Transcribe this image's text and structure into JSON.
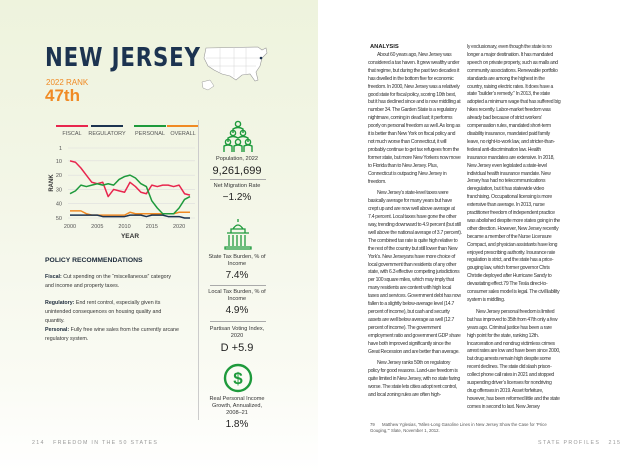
{
  "left_page": {
    "title": "NEW JERSEY",
    "rank_label": "2022 RANK",
    "rank": "47th",
    "stats": [
      {
        "label": "Population, 2022",
        "value": "9,261,699",
        "icon": "people-icon"
      },
      {
        "label": "Net Migration Rate",
        "value": "−1.2%"
      },
      {
        "label": "State Tax Burden, % of Income",
        "value": "7.4%",
        "icon": "capitol-icon"
      },
      {
        "label": "Local Tax Burden, % of Income",
        "value": "4.9%"
      },
      {
        "label": "Partisan Voting Index, 2020",
        "value": "D +5.9"
      },
      {
        "label": "Real Personal Income Growth, Annualized, 2008–21",
        "value": "1.8%",
        "icon": "dollar-icon"
      }
    ],
    "policy": {
      "heading": "POLICY RECOMMENDATIONS",
      "items": [
        {
          "label": "Fiscal:",
          "text": " Cut spending on the “miscellaneous” category and income and property taxes."
        },
        {
          "label": "Regulatory:",
          "text": " End rent control, especially given its unintended consequences on housing quality and quantity."
        },
        {
          "label": "Personal:",
          "text": " Fully free wine sales from the currently arcane regulatory system."
        }
      ]
    },
    "footer": {
      "page": "214",
      "title": "FREEDOM IN THE 50 STATES"
    }
  },
  "chart_data": {
    "type": "line",
    "xlabel": "YEAR",
    "ylabel": "RANK",
    "xlim": [
      2000,
      2022
    ],
    "ylim": [
      1,
      50
    ],
    "y_inverted": true,
    "xticks": [
      2000,
      2005,
      2010,
      2015,
      2020
    ],
    "yticks": [
      1,
      10,
      20,
      30,
      40,
      50
    ],
    "grid": true,
    "legend": "top",
    "x": [
      2000,
      2001,
      2002,
      2003,
      2004,
      2005,
      2006,
      2007,
      2008,
      2009,
      2010,
      2011,
      2012,
      2013,
      2014,
      2015,
      2016,
      2017,
      2018,
      2019,
      2020,
      2021,
      2022
    ],
    "series": [
      {
        "name": "FISCAL",
        "color": "#e8264e",
        "values": [
          10,
          11,
          15,
          20,
          25,
          26,
          25,
          35,
          30,
          31,
          32,
          25,
          28,
          32,
          33,
          27,
          28,
          27,
          27,
          28,
          27,
          33,
          34
        ]
      },
      {
        "name": "REGULATORY",
        "color": "#1c3350",
        "values": [
          48,
          48,
          48,
          48,
          48,
          48,
          49,
          49,
          49,
          49,
          49,
          48,
          48,
          48,
          49,
          48,
          48,
          48,
          49,
          49,
          49,
          50,
          50
        ]
      },
      {
        "name": "PERSONAL",
        "color": "#1e9a3c",
        "values": [
          33,
          31,
          27,
          28,
          27,
          26,
          27,
          26,
          27,
          23,
          21,
          20,
          22,
          26,
          28,
          38,
          43,
          47,
          47,
          47,
          43,
          37,
          35
        ]
      },
      {
        "name": "OVERALL",
        "color": "#f08a24",
        "values": [
          45,
          45,
          45,
          47,
          48,
          48,
          48,
          48,
          48,
          48,
          48,
          46,
          47,
          47,
          47,
          47,
          47,
          47,
          47,
          47,
          46,
          46,
          46
        ]
      }
    ]
  },
  "right_page": {
    "heading": "ANALYSIS",
    "col1": [
      "About 60 years ago, New Jersey was considered a tax haven. It grew wealthy under that regime, but during the past two decades it has dwelled in the bottom five for economic freedom. In 2000, New Jersey was a relatively good state for fiscal policy, scoring 10th best, but it has declined since and is now middling at number 34. The Garden State is a regulatory nightmare, coming in dead last; it performs poorly on personal freedom as well. As long as it is better than New York on fiscal policy and not much worse than Connecticut, it will probably continue to get tax refugees from the former state, but more New Yorkers now move to Florida than to New Jersey. Plus, Connecticut is outpacing New Jersey in freedom.",
      "New Jersey’s state-level taxes were basically average for many years but have crept up and are now well above average at 7.4 percent. Local taxes have gone the other way, trending downward to 4.9 percent (but still well above the national average of 3.7 percent). The combined tax rate is quite high relative to the rest of the country but still lower than New York’s. New Jerseyans have more choice of local government than residents of any other state, with 6.3 effective competing jurisdictions per 100 square miles, which may imply that many residents are content with high local taxes and services. Government debt has now fallen to a slightly below-average level (14.7 percent of income), but cash and security assets are well below average as well (12.7 percent of income). The government employment ratio and government GDP share have both improved significantly since the Great Recession and are better than average.",
      "New Jersey ranks 50th on regulatory policy for good reasons. Land-use freedom is quite limited in New Jersey, with no state faring worse. The state lets cities adopt rent control, and local zoning rules are often high-"
    ],
    "col2": [
      "ly exclusionary, even though the state is no longer a major destination. It has mandated speech on private property, such as malls and community associations. Renewable portfolio standards are among the highest in the country, raising electric rates. It does have a state “builder’s remedy.” In 2013, the state adopted a minimum wage that has suffered big hikes recently. Labor-market freedom was already bad because of strict workers’ compensation rules, mandated short-term disability insurance, mandated paid family leave, no right-to-work law, and stricter-than-federal anti-discrimination law. Health insurance mandates are extensive. In 2018, New Jersey even legislated a state-level individual health insurance mandate. New Jersey has had no telecommunications deregulation, but it has statewide video franchising. Occupational licensing is more extensive than average. In 2013, nurse practitioner freedom of independent practice was abolished despite more states going in the other direction. However, New Jersey recently became a member of the Nurse Licensure Compact, and physician assistants have long enjoyed prescribing authority. Insurance rate regulation is strict, and the state has a price-gouging law, which former governor Chris Christie deployed after Hurricane Sandy to devastating effect.79 The Tesla direct-to-consumer sales model is legal. The civil liability system is middling.",
      "New Jersey personal freedom is limited but has improved to 35th from 47th only a few years ago. Criminal justice has been a rare high point for the state, ranking 12th. Incarceration and nondrug victimless crimes arrest rates are low and have been since 2000, but drug arrests remain high despite some recent declines. The state did slash prison-collect phone call rates in 2021 and stopped suspending driver’s licenses for nondriving drug offenses in 2019. Asset forfeiture, however, has been reformed little and the state comes in second to last. New Jersey"
    ],
    "footnote": {
      "num": "79",
      "text": "Matthew Yglesias, “Miles-Long Gasoline Lines in New Jersey Show the Case for ‘Price Gouging,’” Slate, November 1, 2012."
    },
    "footer": {
      "title": "STATE PROFILES",
      "page": "215"
    }
  }
}
